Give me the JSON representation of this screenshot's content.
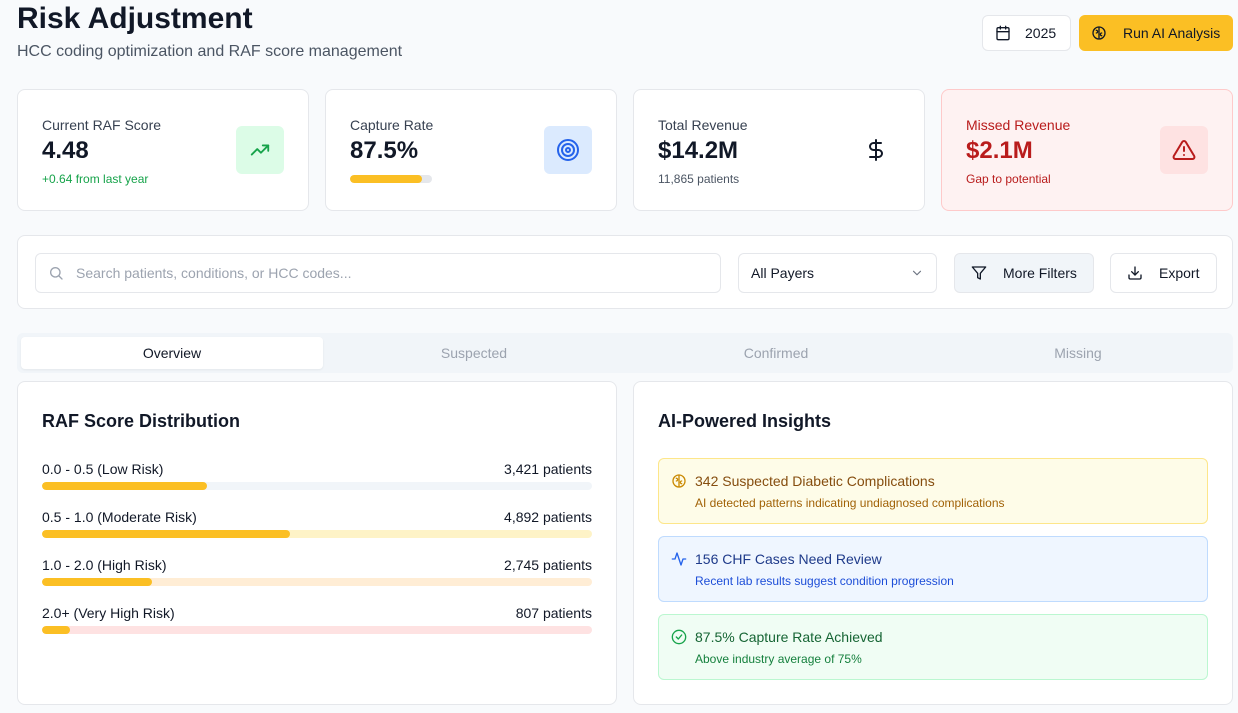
{
  "header": {
    "title": "Risk Adjustment",
    "subtitle": "HCC coding optimization and RAF score management",
    "year_label": "2025",
    "ai_button_label": "Run AI Analysis"
  },
  "stats": [
    {
      "label": "Current RAF Score",
      "value": "4.48",
      "sub": "+0.64 from last year",
      "icon": "trending-up-icon"
    },
    {
      "label": "Capture Rate",
      "value": "87.5%",
      "progress": 0.875,
      "icon": "target-icon"
    },
    {
      "label": "Total Revenue",
      "value": "$14.2M",
      "sub": "11,865 patients",
      "icon": "dollar-icon"
    },
    {
      "label": "Missed Revenue",
      "value": "$2.1M",
      "sub": "Gap to potential",
      "icon": "alert-triangle-icon"
    }
  ],
  "filters": {
    "search_placeholder": "Search patients, conditions, or HCC codes...",
    "payer_selected": "All Payers",
    "more_filters_label": "More Filters",
    "export_label": "Export"
  },
  "tabs": [
    {
      "label": "Overview",
      "active": true
    },
    {
      "label": "Suspected",
      "active": false
    },
    {
      "label": "Confirmed",
      "active": false
    },
    {
      "label": "Missing",
      "active": false
    }
  ],
  "distribution": {
    "title": "RAF Score Distribution",
    "rows": [
      {
        "label": "0.0 - 0.5 (Low Risk)",
        "count": "3,421 patients",
        "fraction": 0.3,
        "track_color": "#f1f5f9"
      },
      {
        "label": "0.5 - 1.0 (Moderate Risk)",
        "count": "4,892 patients",
        "fraction": 0.45,
        "track_color": "#fef3c7"
      },
      {
        "label": "1.0 - 2.0 (High Risk)",
        "count": "2,745 patients",
        "fraction": 0.2,
        "track_color": "#ffedd5"
      },
      {
        "label": "2.0+ (Very High Risk)",
        "count": "807 patients",
        "fraction": 0.05,
        "track_color": "#fee2e2"
      }
    ]
  },
  "insights": {
    "title": "AI-Powered Insights",
    "items": [
      {
        "title": "342 Suspected Diabetic Complications",
        "sub": "AI detected patterns indicating undiagnosed complications",
        "variant": "yellow",
        "icon": "brain-icon"
      },
      {
        "title": "156 CHF Cases Need Review",
        "sub": "Recent lab results suggest condition progression",
        "variant": "blue",
        "icon": "activity-icon"
      },
      {
        "title": "87.5% Capture Rate Achieved",
        "sub": "Above industry average of 75%",
        "variant": "green",
        "icon": "check-circle-icon"
      }
    ]
  },
  "colors": {
    "accent": "#fbbf24",
    "danger": "#b91c1c",
    "success": "#16a34a"
  }
}
